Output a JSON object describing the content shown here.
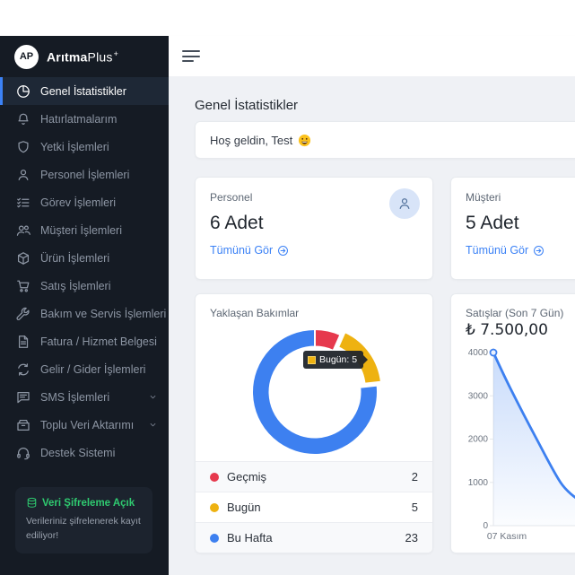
{
  "sidebar": {
    "brand": {
      "initials": "AP",
      "name_bold": "Arıtma",
      "name_light": "Plus",
      "superscript": "+"
    },
    "items": [
      {
        "label": "Genel İstatistikler",
        "icon": "pie-chart",
        "active": true
      },
      {
        "label": "Hatırlatmalarım",
        "icon": "bell"
      },
      {
        "label": "Yetki İşlemleri",
        "icon": "shield"
      },
      {
        "label": "Personel İşlemleri",
        "icon": "person"
      },
      {
        "label": "Görev İşlemleri",
        "icon": "checklist"
      },
      {
        "label": "Müşteri İşlemleri",
        "icon": "people"
      },
      {
        "label": "Ürün İşlemleri",
        "icon": "box"
      },
      {
        "label": "Satış İşlemleri",
        "icon": "cart"
      },
      {
        "label": "Bakım ve Servis İşlemleri",
        "icon": "wrench"
      },
      {
        "label": "Fatura / Hizmet Belgesi",
        "icon": "file-text"
      },
      {
        "label": "Gelir / Gider İşlemleri",
        "icon": "exchange"
      },
      {
        "label": "SMS İşlemleri",
        "icon": "chat",
        "expandable": true
      },
      {
        "label": "Toplu Veri Aktarımı",
        "icon": "archive",
        "expandable": true
      },
      {
        "label": "Destek Sistemi",
        "icon": "headset"
      }
    ],
    "encryption_notice": {
      "title": "Veri Şifreleme Açık",
      "body": "Verileriniz şifrelenerek kayıt ediliyor!",
      "accent_color": "#2fca70"
    }
  },
  "page": {
    "title": "Genel İstatistikler",
    "welcome": "Hoş geldin, Test"
  },
  "stats_cards": [
    {
      "label": "Personel",
      "value": "6 Adet",
      "link_label": "Tümünü Gör"
    },
    {
      "label": "Müşteri",
      "value": "5 Adet",
      "link_label": "Tümünü Gör"
    }
  ],
  "chart_data": [
    {
      "type": "pie",
      "subtype": "doughnut",
      "title": "Yaklaşan Bakımlar",
      "labels": [
        "Geçmiş",
        "Bugün",
        "Bu Hafta"
      ],
      "values": [
        2,
        5,
        23
      ],
      "colors": [
        "#e6394d",
        "#eeb211",
        "#3d80f0"
      ],
      "highlight_index": 1,
      "tooltip_text": "Bugün: 5",
      "legend_position": "bottom-table"
    },
    {
      "type": "line",
      "title": "Satışlar (Son 7 Gün)",
      "total_label": "₺ 7.500,00",
      "x_visible_labels": [
        "07 Kasım"
      ],
      "y_ticks": [
        0,
        1000,
        2000,
        3000,
        4000
      ],
      "ylim": [
        0,
        4000
      ],
      "line_color": "#3d80f0",
      "fill": "gradient-blue",
      "first_point": {
        "label": "07 Kasım",
        "value": 4000
      },
      "visible_curve": [
        {
          "x_offset": 0,
          "value": 4000
        },
        {
          "x_offset": 19,
          "value": 3170
        },
        {
          "x_offset": 49,
          "value": 1970
        },
        {
          "x_offset": 75,
          "value": 995
        },
        {
          "x_offset": 93,
          "value": 620
        }
      ]
    }
  ],
  "colors": {
    "accent_blue": "#3c82f6",
    "sidebar_bg": "#151b24",
    "content_bg": "#eff1f5"
  }
}
